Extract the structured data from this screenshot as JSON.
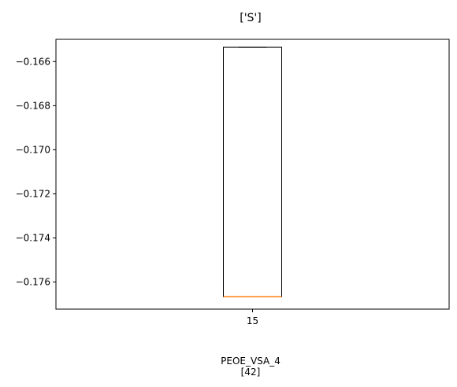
{
  "chart_data": {
    "type": "box",
    "title": "['S']",
    "xlabel": "PEOE_VSA_4",
    "xlabel_sub": "[42]",
    "ylabel": "",
    "categories": [
      "15"
    ],
    "ylim": [
      -0.17723,
      -0.16499
    ],
    "yticks": [
      -0.166,
      -0.168,
      -0.17,
      -0.172,
      -0.174,
      -0.176
    ],
    "ytick_labels": [
      "−0.166",
      "−0.168",
      "−0.170",
      "−0.172",
      "−0.174",
      "−0.176"
    ],
    "boxes": [
      {
        "category": "15",
        "whisker_low": -0.17667,
        "q1": -0.17667,
        "median": -0.17667,
        "q3": -0.16535,
        "whisker_high": -0.16535
      }
    ],
    "colors": {
      "box": "#000000",
      "median": "#ff7f0e",
      "axes": "#000000"
    },
    "grid": false
  }
}
